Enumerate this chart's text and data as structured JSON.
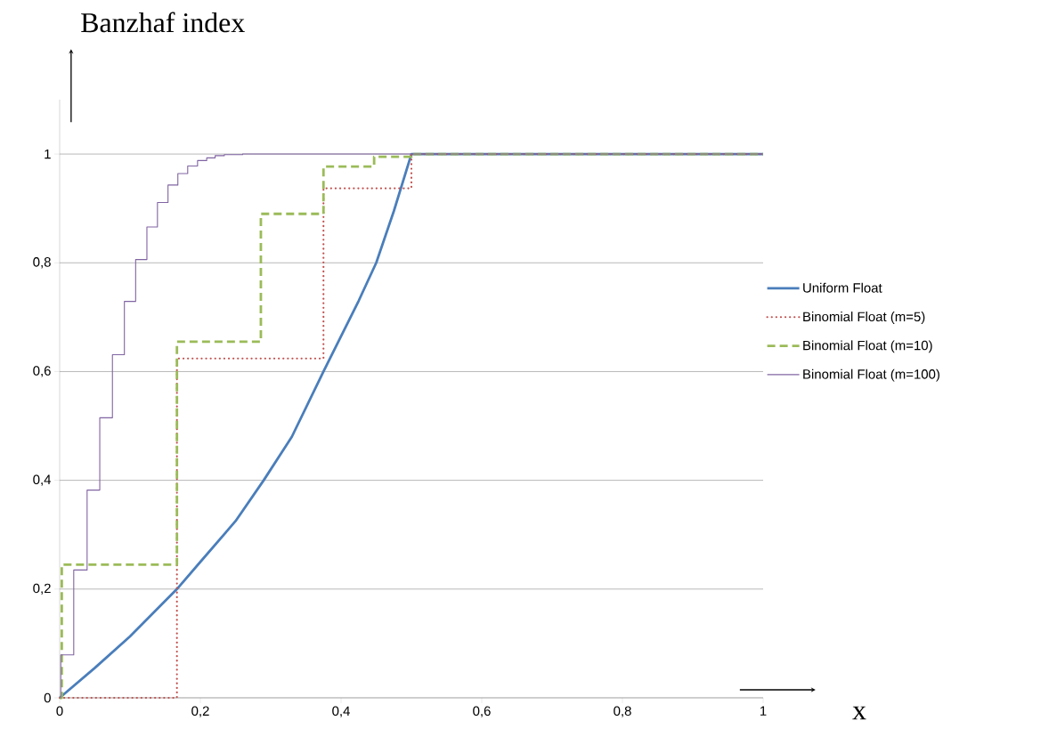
{
  "chart_data": {
    "type": "line",
    "xlabel": "x",
    "ylabel": "Banzhaf  index",
    "xlim": [
      0,
      1
    ],
    "ylim": [
      0,
      1.1
    ],
    "xticks": [
      0,
      {
        "value": 0.2,
        "label": "0,2"
      },
      {
        "value": 0.4,
        "label": "0,4"
      },
      {
        "value": 0.6,
        "label": "0,6"
      },
      {
        "value": 0.8,
        "label": "0,8"
      },
      1
    ],
    "yticks": [
      0,
      {
        "value": 0.2,
        "label": "0,2"
      },
      {
        "value": 0.4,
        "label": "0,4"
      },
      {
        "value": 0.6,
        "label": "0,6"
      },
      {
        "value": 0.8,
        "label": "0,8"
      },
      1
    ],
    "grid": "y",
    "legend": "right",
    "series": [
      {
        "name": "Uniform Float",
        "line_style": "solid",
        "color": "#4a7ebb",
        "x": [
          0,
          0.05,
          0.1,
          0.1667,
          0.2,
          0.25,
          0.29,
          0.33,
          0.375,
          0.4,
          0.425,
          0.45,
          0.475,
          0.5,
          1
        ],
        "values": [
          0,
          0.055,
          0.113,
          0.2,
          0.25,
          0.325,
          0.4,
          0.48,
          0.6,
          0.665,
          0.73,
          0.8,
          0.895,
          1,
          1
        ]
      },
      {
        "name": "Binomial Float (m=5)",
        "type": "step",
        "line_style": "dotted",
        "color": "#c0504d",
        "x": [
          0,
          0.1667,
          0.375,
          0.5,
          1
        ],
        "values": [
          0,
          0.624,
          0.937,
          1,
          1
        ]
      },
      {
        "name": "Binomial Float (m=10)",
        "type": "step",
        "line_style": "dashed",
        "color": "#9bbb59",
        "x": [
          0,
          0.003,
          0.1667,
          0.286,
          0.375,
          0.447,
          0.5,
          1
        ],
        "values": [
          0,
          0.245,
          0.655,
          0.89,
          0.977,
          0.995,
          1,
          1
        ]
      },
      {
        "name": "Binomial Float (m=100)",
        "type": "step",
        "line_style": "solid",
        "color": "#8064a2",
        "x": [
          0,
          0.0016,
          0.02,
          0.039,
          0.057,
          0.075,
          0.092,
          0.108,
          0.124,
          0.139,
          0.154,
          0.168,
          0.182,
          0.196,
          0.209,
          0.221,
          0.234,
          0.26,
          1
        ],
        "values": [
          0,
          0.079,
          0.235,
          0.382,
          0.515,
          0.631,
          0.729,
          0.806,
          0.866,
          0.911,
          0.943,
          0.964,
          0.978,
          0.988,
          0.993,
          0.997,
          0.999,
          1,
          1
        ]
      }
    ]
  }
}
